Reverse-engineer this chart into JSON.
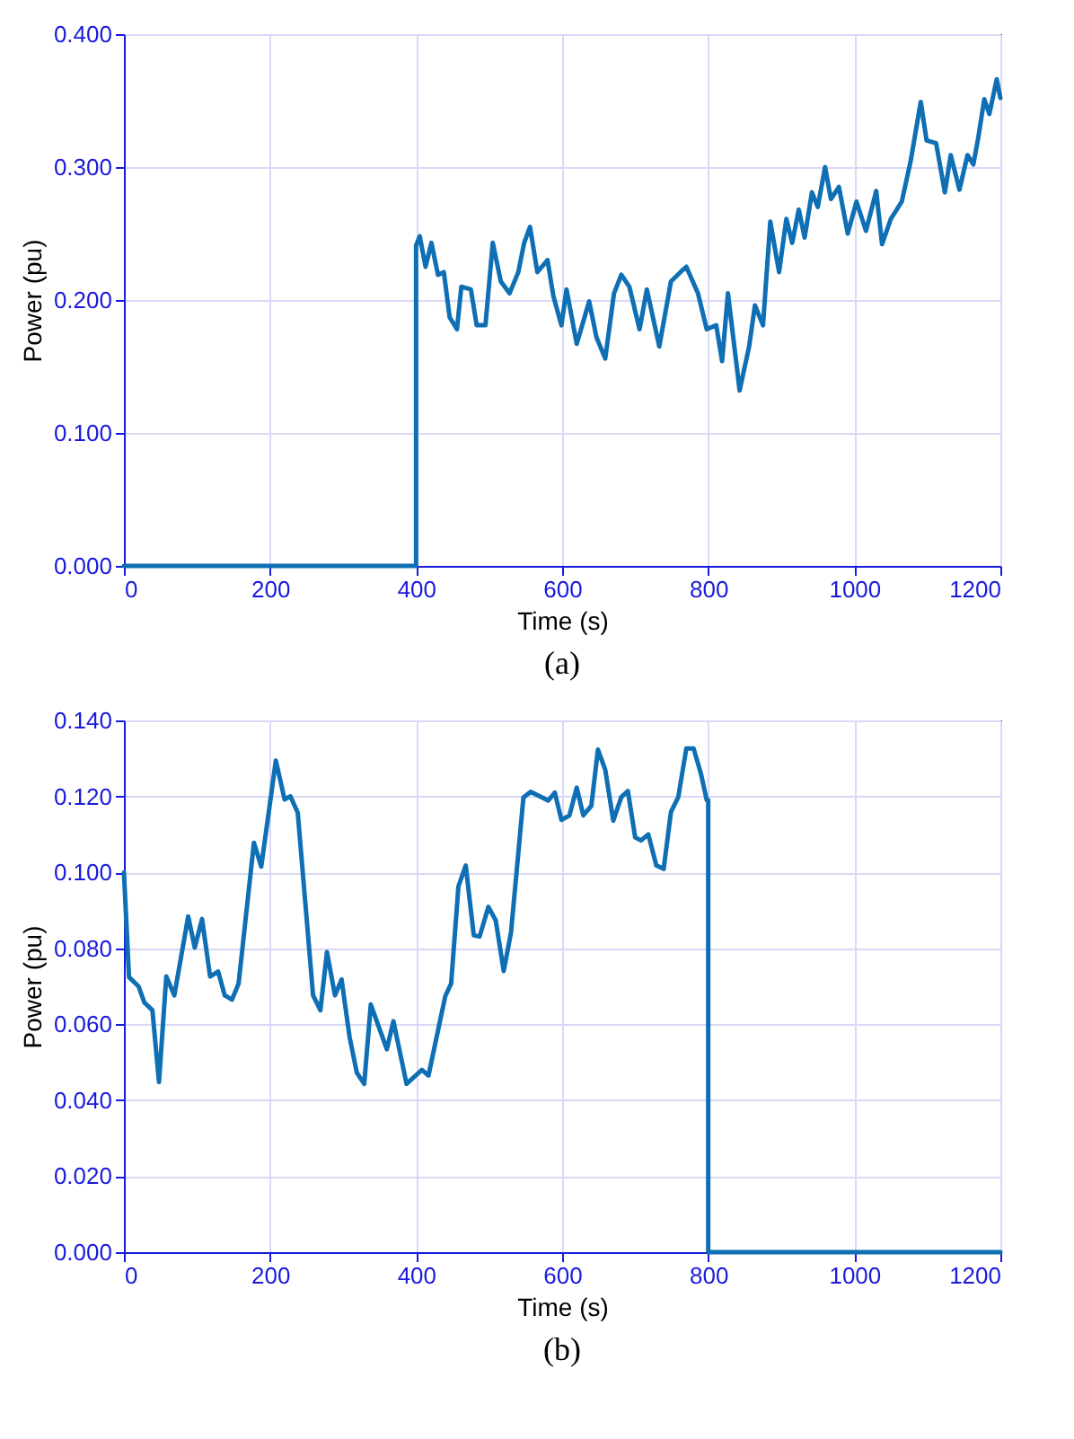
{
  "chart_data": [
    {
      "type": "line",
      "xlabel": "Time (s)",
      "ylabel": "Power (pu)",
      "annotations": [
        "(a)"
      ],
      "xlim": [
        0,
        1200
      ],
      "xticks": [
        0,
        200,
        400,
        600,
        800,
        1000,
        1200
      ],
      "ylim": [
        0,
        0.4
      ],
      "yticks": [
        {
          "value": 0,
          "label": "0.000"
        },
        {
          "value": 0.1,
          "label": "0.100"
        },
        {
          "value": 0.2,
          "label": "0.200"
        },
        {
          "value": 0.3,
          "label": "0.300"
        },
        {
          "value": 0.4,
          "label": "0.400"
        }
      ],
      "grid": true,
      "marker": "none",
      "line_style": "solid",
      "series": [
        {
          "color": "#0f6fb4",
          "x": [
            0,
            400,
            400,
            405,
            413,
            421,
            430,
            438,
            446,
            456,
            462,
            475,
            483,
            495,
            505,
            516,
            528,
            540,
            548,
            556,
            566,
            580,
            588,
            599,
            606,
            620,
            637,
            647,
            659,
            671,
            681,
            692,
            706,
            716,
            733,
            749,
            762,
            770,
            786,
            798,
            811,
            819,
            827,
            843,
            856,
            864,
            875,
            885,
            897,
            907,
            915,
            924,
            932,
            942,
            950,
            960,
            968,
            979,
            991,
            1003,
            1016,
            1030,
            1038,
            1050,
            1065,
            1077,
            1091,
            1099,
            1112,
            1124,
            1132,
            1144,
            1155,
            1163,
            1170,
            1178,
            1185,
            1195,
            1200
          ],
          "values": [
            0,
            0,
            0.241,
            0.248,
            0.225,
            0.243,
            0.219,
            0.221,
            0.187,
            0.178,
            0.21,
            0.208,
            0.181,
            0.181,
            0.243,
            0.214,
            0.205,
            0.221,
            0.243,
            0.255,
            0.221,
            0.23,
            0.203,
            0.181,
            0.208,
            0.167,
            0.199,
            0.172,
            0.156,
            0.205,
            0.219,
            0.21,
            0.178,
            0.208,
            0.165,
            0.214,
            0.221,
            0.225,
            0.205,
            0.178,
            0.181,
            0.154,
            0.205,
            0.132,
            0.165,
            0.196,
            0.181,
            0.259,
            0.221,
            0.261,
            0.243,
            0.268,
            0.247,
            0.281,
            0.27,
            0.3,
            0.276,
            0.285,
            0.25,
            0.274,
            0.252,
            0.282,
            0.242,
            0.261,
            0.274,
            0.304,
            0.349,
            0.32,
            0.318,
            0.281,
            0.309,
            0.283,
            0.309,
            0.302,
            0.323,
            0.351,
            0.34,
            0.366,
            0.352
          ]
        }
      ]
    },
    {
      "type": "line",
      "xlabel": "Time (s)",
      "ylabel": "Power (pu)",
      "annotations": [
        "(b)"
      ],
      "xlim": [
        0,
        1200
      ],
      "xticks": [
        0,
        200,
        400,
        600,
        800,
        1000,
        1200
      ],
      "ylim": [
        0,
        0.14
      ],
      "yticks": [
        {
          "value": 0,
          "label": "0.000"
        },
        {
          "value": 0.02,
          "label": "0.020"
        },
        {
          "value": 0.04,
          "label": "0.040"
        },
        {
          "value": 0.06,
          "label": "0.060"
        },
        {
          "value": 0.08,
          "label": "0.080"
        },
        {
          "value": 0.1,
          "label": "0.100"
        },
        {
          "value": 0.12,
          "label": "0.120"
        },
        {
          "value": 0.14,
          "label": "0.140"
        }
      ],
      "grid": true,
      "marker": "none",
      "line_style": "solid",
      "series": [
        {
          "color": "#0f6fb4",
          "x": [
            0,
            7,
            20,
            28,
            39,
            48,
            58,
            69,
            88,
            97,
            107,
            118,
            129,
            138,
            148,
            157,
            178,
            188,
            208,
            220,
            228,
            238,
            259,
            269,
            278,
            289,
            298,
            309,
            319,
            329,
            338,
            360,
            369,
            387,
            408,
            417,
            440,
            448,
            458,
            468,
            479,
            487,
            499,
            509,
            520,
            530,
            547,
            557,
            581,
            590,
            599,
            610,
            620,
            629,
            640,
            649,
            659,
            670,
            681,
            690,
            700,
            708,
            718,
            729,
            739,
            749,
            759,
            770,
            780,
            790,
            798,
            800,
            800,
            1200
          ],
          "values": [
            0.1,
            0.0724,
            0.07,
            0.0657,
            0.0637,
            0.0448,
            0.0726,
            0.0676,
            0.0884,
            0.0802,
            0.0877,
            0.0726,
            0.0739,
            0.0676,
            0.0665,
            0.0707,
            0.1078,
            0.1015,
            0.1294,
            0.1192,
            0.12,
            0.1157,
            0.0676,
            0.0637,
            0.079,
            0.0676,
            0.0718,
            0.0566,
            0.0472,
            0.0443,
            0.0652,
            0.0534,
            0.0608,
            0.0443,
            0.048,
            0.0465,
            0.0674,
            0.0707,
            0.0963,
            0.1018,
            0.0834,
            0.0831,
            0.0909,
            0.0874,
            0.074,
            0.0842,
            0.1197,
            0.1212,
            0.1189,
            0.121,
            0.1138,
            0.115,
            0.1223,
            0.115,
            0.1175,
            0.1323,
            0.127,
            0.1136,
            0.1198,
            0.1214,
            0.1092,
            0.1084,
            0.11,
            0.1018,
            0.1009,
            0.1159,
            0.1198,
            0.1326,
            0.1326,
            0.126,
            0.119,
            0.119,
            0,
            0
          ]
        }
      ]
    }
  ]
}
